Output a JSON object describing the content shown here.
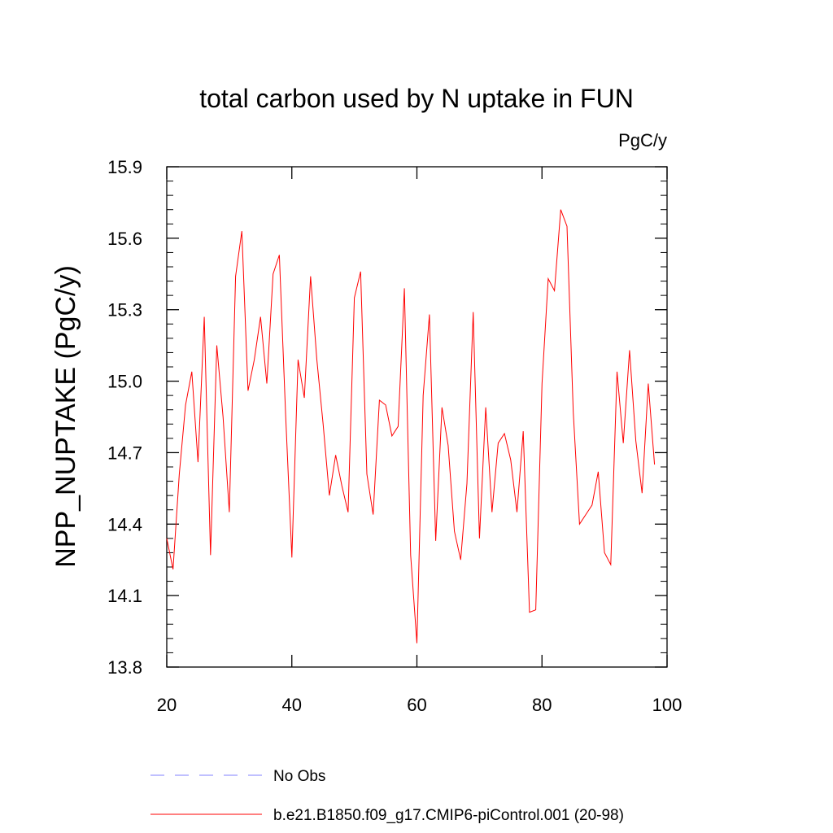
{
  "chart_data": {
    "type": "line",
    "title": "total carbon used by N uptake in FUN",
    "units_label": "PgC/y",
    "ylabel": "NPP_NUPTAKE  (PgC/y)",
    "xlabel": "",
    "xlim": [
      20,
      100
    ],
    "ylim": [
      13.8,
      15.9
    ],
    "xticks": [
      20,
      40,
      60,
      80,
      100
    ],
    "xtick_labels": [
      "20",
      "40",
      "60",
      "80",
      "100"
    ],
    "yticks": [
      13.8,
      14.1,
      14.4,
      14.7,
      15.0,
      15.3,
      15.6,
      15.9
    ],
    "ytick_labels": [
      "13.8",
      "14.1",
      "14.4",
      "14.7",
      "15.0",
      "15.3",
      "15.6",
      "15.9"
    ],
    "grid": false,
    "legend_position": "bottom",
    "legend": [
      {
        "label": "No Obs",
        "color": "#8080ff",
        "style": "dashed"
      },
      {
        "label": "b.e21.B1850.f09_g17.CMIP6-piControl.001 (20-98)",
        "color": "#ff0000",
        "style": "solid"
      }
    ],
    "series": [
      {
        "name": "b.e21.B1850.f09_g17.CMIP6-piControl.001 (20-98)",
        "color": "#ff0000",
        "x": [
          20,
          21,
          22,
          23,
          24,
          25,
          26,
          27,
          28,
          29,
          30,
          31,
          32,
          33,
          34,
          35,
          36,
          37,
          38,
          39,
          40,
          41,
          42,
          43,
          44,
          45,
          46,
          47,
          48,
          49,
          50,
          51,
          52,
          53,
          54,
          55,
          56,
          57,
          58,
          59,
          60,
          61,
          62,
          63,
          64,
          65,
          66,
          67,
          68,
          69,
          70,
          71,
          72,
          73,
          74,
          75,
          76,
          77,
          78,
          79,
          80,
          81,
          82,
          83,
          84,
          85,
          86,
          87,
          88,
          89,
          90,
          91,
          92,
          93,
          94,
          95,
          96,
          97,
          98
        ],
        "y": [
          14.34,
          14.21,
          14.61,
          14.9,
          15.04,
          14.66,
          15.27,
          14.27,
          15.15,
          14.85,
          14.45,
          15.44,
          15.63,
          14.96,
          15.09,
          15.27,
          14.99,
          15.45,
          15.53,
          14.86,
          14.26,
          15.09,
          14.93,
          15.44,
          15.09,
          14.82,
          14.52,
          14.69,
          14.56,
          14.45,
          15.35,
          15.46,
          14.61,
          14.44,
          14.92,
          14.9,
          14.77,
          14.81,
          15.39,
          14.27,
          13.9,
          14.94,
          15.28,
          14.33,
          14.89,
          14.73,
          14.37,
          14.25,
          14.57,
          15.29,
          14.34,
          14.89,
          14.45,
          14.74,
          14.78,
          14.67,
          14.45,
          14.79,
          14.03,
          14.04,
          14.99,
          15.43,
          15.38,
          15.72,
          15.65,
          14.87,
          14.4,
          14.44,
          14.48,
          14.62,
          14.28,
          14.23,
          15.04,
          14.74,
          15.13,
          14.75,
          14.53,
          14.99,
          14.65
        ]
      }
    ]
  }
}
